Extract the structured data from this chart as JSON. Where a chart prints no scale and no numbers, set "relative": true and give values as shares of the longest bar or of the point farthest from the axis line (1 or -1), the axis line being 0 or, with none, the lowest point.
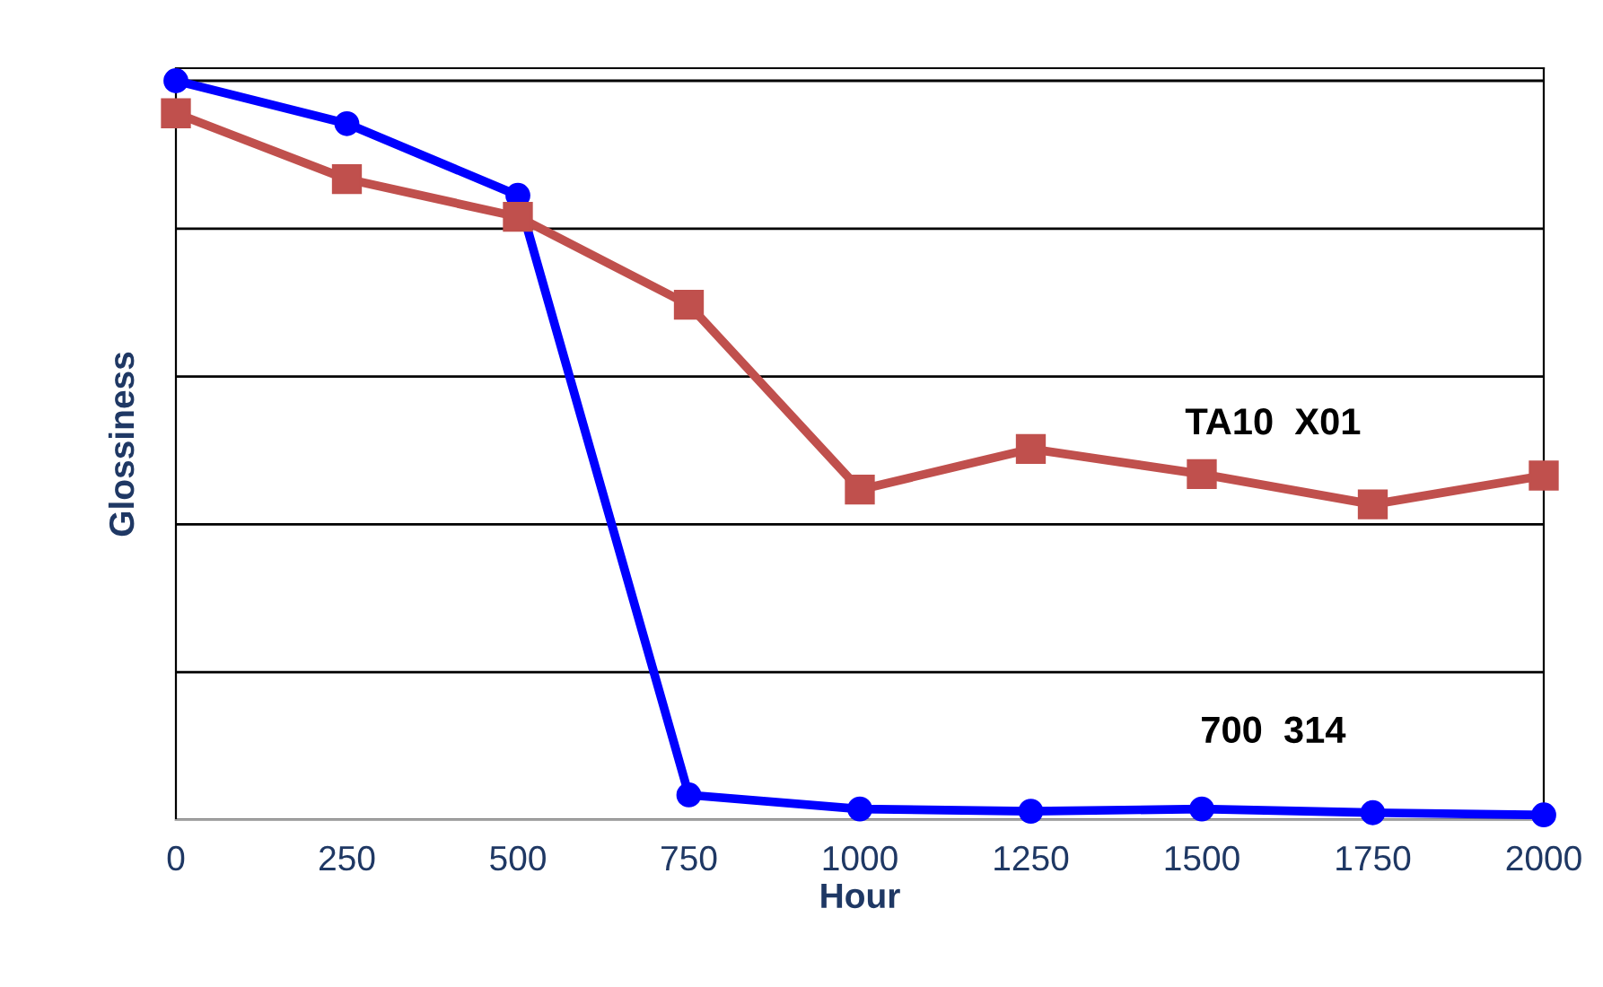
{
  "chart_data": {
    "type": "line",
    "xlabel": "Hour",
    "ylabel": "Glossiness",
    "relative": true,
    "grid": "y",
    "legend": false,
    "x": [
      0,
      250,
      500,
      750,
      1000,
      1250,
      1500,
      1750,
      2000
    ],
    "xlim": [
      0,
      2000
    ],
    "xticks": [
      0,
      250,
      500,
      750,
      1000,
      1250,
      1500,
      1750,
      2000
    ],
    "series": [
      {
        "name": "700  314",
        "color": "#0000ff",
        "marker": "circle",
        "values": [
          1.0,
          0.942,
          0.845,
          0.034,
          0.015,
          0.012,
          0.015,
          0.01,
          0.007
        ]
      },
      {
        "name": "TA10  X01",
        "color": "#c0504d",
        "marker": "square",
        "values": [
          0.956,
          0.867,
          0.816,
          0.697,
          0.447,
          0.502,
          0.468,
          0.427,
          0.466
        ]
      }
    ]
  }
}
